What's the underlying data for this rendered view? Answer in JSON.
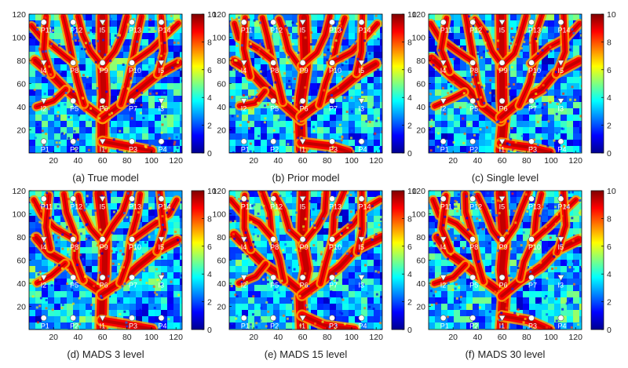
{
  "chart_data": [
    {
      "type": "heatmap",
      "caption": "(a) True model",
      "xlim": [
        0,
        125
      ],
      "ylim": [
        0,
        120
      ],
      "xticks": [
        20,
        40,
        60,
        80,
        100,
        120
      ],
      "yticks": [
        20,
        40,
        60,
        80,
        100,
        120
      ],
      "colorbar": {
        "range": [
          0,
          10
        ],
        "ticks": [
          0,
          2,
          4,
          6,
          8,
          10
        ]
      }
    },
    {
      "type": "heatmap",
      "caption": "(b) Prior model",
      "xlim": [
        0,
        125
      ],
      "ylim": [
        0,
        120
      ],
      "xticks": [
        20,
        40,
        60,
        80,
        100,
        120
      ],
      "yticks": [
        20,
        40,
        60,
        80,
        100,
        120
      ],
      "colorbar": {
        "range": [
          0,
          10
        ],
        "ticks": [
          0,
          2,
          4,
          6,
          8,
          10
        ]
      }
    },
    {
      "type": "heatmap",
      "caption": "(c) Single level",
      "xlim": [
        0,
        125
      ],
      "ylim": [
        0,
        120
      ],
      "xticks": [
        20,
        40,
        60,
        80,
        100,
        120
      ],
      "yticks": [
        20,
        40,
        60,
        80,
        100,
        120
      ],
      "colorbar": {
        "range": [
          0,
          10
        ],
        "ticks": [
          0,
          2,
          4,
          6,
          8,
          10
        ]
      }
    },
    {
      "type": "heatmap",
      "caption": "(d) MADS 3 level",
      "xlim": [
        0,
        125
      ],
      "ylim": [
        0,
        120
      ],
      "xticks": [
        20,
        40,
        60,
        80,
        100,
        120
      ],
      "yticks": [
        20,
        40,
        60,
        80,
        100,
        120
      ],
      "colorbar": {
        "range": [
          0,
          10
        ],
        "ticks": [
          0,
          2,
          4,
          6,
          8,
          10
        ]
      }
    },
    {
      "type": "heatmap",
      "caption": "(e) MADS 15 level",
      "xlim": [
        0,
        125
      ],
      "ylim": [
        0,
        120
      ],
      "xticks": [
        20,
        40,
        60,
        80,
        100,
        120
      ],
      "yticks": [
        20,
        40,
        60,
        80,
        100,
        120
      ],
      "colorbar": {
        "range": [
          0,
          10
        ],
        "ticks": [
          0,
          2,
          4,
          6,
          8,
          10
        ]
      }
    },
    {
      "type": "heatmap",
      "caption": "(f) MADS 30 level",
      "xlim": [
        0,
        125
      ],
      "ylim": [
        0,
        120
      ],
      "xticks": [
        20,
        40,
        60,
        80,
        100,
        120
      ],
      "yticks": [
        20,
        40,
        60,
        80,
        100,
        120
      ],
      "colorbar": {
        "range": [
          0,
          10
        ],
        "ticks": [
          0,
          2,
          4,
          6,
          8,
          10
        ]
      }
    }
  ],
  "wells": [
    {
      "label": "P11",
      "x": 12,
      "y": 113,
      "kind": "producer"
    },
    {
      "label": "P12",
      "x": 36,
      "y": 113,
      "kind": "producer"
    },
    {
      "label": "I5",
      "x": 60,
      "y": 113,
      "kind": "injector"
    },
    {
      "label": "P13",
      "x": 84,
      "y": 113,
      "kind": "producer"
    },
    {
      "label": "P14",
      "x": 108,
      "y": 113,
      "kind": "producer"
    },
    {
      "label": "I4",
      "x": 12,
      "y": 78,
      "kind": "injector"
    },
    {
      "label": "P8",
      "x": 36,
      "y": 78,
      "kind": "producer"
    },
    {
      "label": "P9",
      "x": 60,
      "y": 78,
      "kind": "producer"
    },
    {
      "label": "P10",
      "x": 84,
      "y": 78,
      "kind": "producer"
    },
    {
      "label": "I5",
      "x": 108,
      "y": 78,
      "kind": "injector"
    },
    {
      "label": "I2",
      "x": 12,
      "y": 45,
      "kind": "injector"
    },
    {
      "label": "P5",
      "x": 36,
      "y": 45,
      "kind": "producer"
    },
    {
      "label": "P6",
      "x": 60,
      "y": 45,
      "kind": "producer"
    },
    {
      "label": "P7",
      "x": 84,
      "y": 45,
      "kind": "producer"
    },
    {
      "label": "I3",
      "x": 108,
      "y": 45,
      "kind": "injector"
    },
    {
      "label": "P1",
      "x": 12,
      "y": 10,
      "kind": "producer"
    },
    {
      "label": "P2",
      "x": 36,
      "y": 10,
      "kind": "producer"
    },
    {
      "label": "I1",
      "x": 60,
      "y": 10,
      "kind": "injector"
    },
    {
      "label": "P3",
      "x": 84,
      "y": 10,
      "kind": "producer"
    },
    {
      "label": "P4",
      "x": 108,
      "y": 10,
      "kind": "producer"
    }
  ],
  "colors": {
    "colormap": [
      "#00008f",
      "#0000ff",
      "#0080ff",
      "#00ffff",
      "#80ff80",
      "#ffff00",
      "#ff8000",
      "#ff0000",
      "#800000"
    ],
    "channel": "#e8231a",
    "marker": "#ffffff"
  }
}
